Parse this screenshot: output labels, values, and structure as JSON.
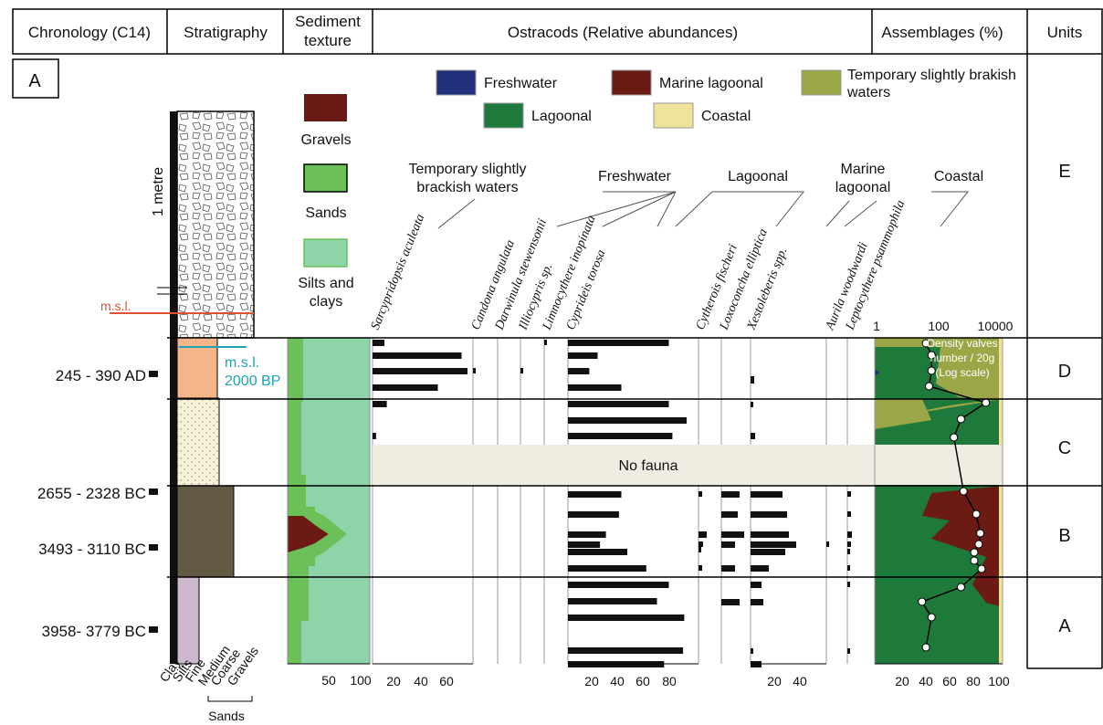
{
  "headers": {
    "chronology": "Chronology (C14)",
    "stratigraphy": "Stratigraphy",
    "sediment_line1": "Sediment",
    "sediment_line2": "texture",
    "ostracods": "Ostracods (Relative abundances)",
    "assemblages": "Assemblages (%)",
    "units": "Units"
  },
  "panel_label": "A",
  "legend": [
    {
      "label": "Freshwater",
      "color": "#1f2f7a"
    },
    {
      "label": "Marine lagoonal",
      "color": "#6b1a14"
    },
    {
      "label": "Temporary slightly brakish",
      "label2": "waters",
      "color": "#9ba646"
    },
    {
      "label": "Lagoonal",
      "color": "#1e7a3a"
    },
    {
      "label": "Coastal",
      "color": "#efe39a"
    }
  ],
  "sediment_legend": [
    {
      "label": "Gravels",
      "color": "#6b1a14"
    },
    {
      "label": "Sands",
      "color": "#6cc05a"
    },
    {
      "label": "Silts and",
      "label2": "clays",
      "color": "#8fd3a8"
    }
  ],
  "strat_labels": {
    "scale": "1 metre",
    "msl": "m.s.l.",
    "msl2000_line1": "m.s.l.",
    "msl2000_line2": "2000 BP",
    "grain": [
      "Clay",
      "Silts",
      "Fine",
      "Medium",
      "Coarse",
      "Gravels"
    ],
    "sands": "Sands"
  },
  "group_labels": {
    "temporary_line1": "Temporary slightly",
    "temporary_line2": "brackish waters",
    "freshwater": "Freshwater",
    "lagoonal": "Lagoonal",
    "marine_line1": "Marine",
    "marine_line2": "lagoonal",
    "coastal": "Coastal"
  },
  "no_fauna": "No fauna",
  "density_label": [
    "Density valves",
    "number / 20g",
    "(Log scale)"
  ],
  "chronology": [
    {
      "label": "245 - 390 AD"
    },
    {
      "label": "2655 - 2328 BC"
    },
    {
      "label": "3493 - 3110 BC"
    },
    {
      "label": "3958- 3779 BC"
    }
  ],
  "units": [
    "E",
    "D",
    "C",
    "B",
    "A"
  ],
  "axes": {
    "sediment_ticks": [
      "50",
      "100"
    ],
    "sarcy_ticks": [
      "20",
      "40",
      "60"
    ],
    "cyprideis_ticks": [
      "20",
      "40",
      "60",
      "80"
    ],
    "xesto_ticks": [
      "20",
      "40"
    ],
    "assemblage_ticks": [
      "20",
      "40",
      "60",
      "80",
      "100"
    ],
    "density_ticks": [
      "1",
      "100",
      "10000"
    ]
  },
  "chart_data": {
    "type": "bar",
    "y_units": [
      "E",
      "D",
      "C",
      "B",
      "A"
    ],
    "species": [
      "Sarcypridopsis aculeata",
      "Candona angulata",
      "Darwinula stewensonii",
      "Illiocypris sp.",
      "Limnocythere inopinata",
      "Cyprideis torosa",
      "Cytherois fischeri",
      "Loxoconcha elliptica",
      "Xestoleberis spp.",
      "Aurila woodwardi",
      "Leptocythere psammophila"
    ],
    "series": [
      {
        "name": "Sarcypridopsis aculeata",
        "values": [
          10,
          75,
          80,
          55,
          12,
          3
        ]
      },
      {
        "name": "Cyprideis torosa",
        "values": [
          85,
          25,
          18,
          45,
          85,
          100,
          88,
          45,
          43,
          32,
          27,
          50,
          66,
          85,
          75,
          98,
          97,
          81
        ]
      },
      {
        "name": "Loxoconcha elliptica",
        "values": [
          20,
          18,
          25,
          15,
          15,
          20
        ]
      },
      {
        "name": "Xestoleberis spp.",
        "values": [
          35,
          40,
          42,
          50,
          38,
          20,
          12,
          14,
          12
        ]
      }
    ],
    "density_valves_log": [
      40,
      60,
      60,
      50,
      3000,
      500,
      300,
      600,
      1500,
      2000,
      1800,
      1300,
      1300,
      2200,
      500,
      30,
      60,
      40
    ],
    "assemblage_xlim": [
      0,
      100
    ],
    "density_xlim": [
      1,
      10000
    ],
    "density_scale": "log"
  }
}
